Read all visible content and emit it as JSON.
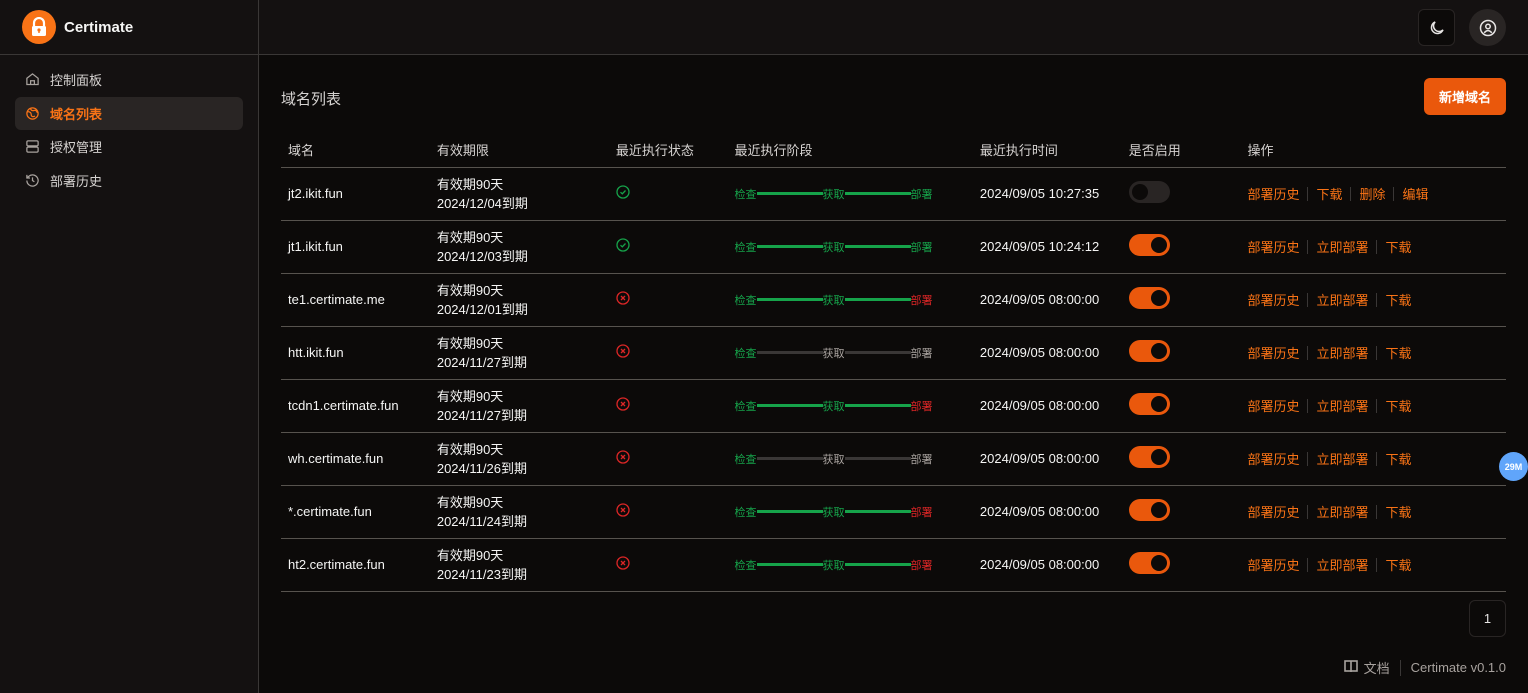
{
  "app": {
    "title": "Certimate",
    "accent": "#f97316"
  },
  "sidebar": {
    "items": [
      {
        "label": "控制面板",
        "icon": "home-icon"
      },
      {
        "label": "域名列表",
        "icon": "globe-icon",
        "active": true
      },
      {
        "label": "授权管理",
        "icon": "server-icon"
      },
      {
        "label": "部署历史",
        "icon": "history-icon"
      }
    ]
  },
  "header": {
    "theme_icon": "moon-icon",
    "user_icon": "user-circle-icon"
  },
  "main": {
    "title": "域名列表",
    "add_label": "新增域名",
    "columns": [
      "域名",
      "有效期限",
      "最近执行状态",
      "最近执行阶段",
      "最近执行时间",
      "是否启用",
      "操作"
    ],
    "stage_labels": [
      "检查",
      "获取",
      "部署"
    ],
    "colors": {
      "success": "#16a34a",
      "failed": "#dc2626",
      "pending": "#a8a29e"
    },
    "rows": [
      {
        "domain": "jt2.ikit.fun",
        "validity": "有效期90天",
        "expiry": "2024/12/04到期",
        "status": "success",
        "stages": [
          "success",
          "success",
          "success"
        ],
        "time": "2024/09/05 10:27:35",
        "enabled": false,
        "actions": [
          "部署历史",
          "下载",
          "删除",
          "编辑"
        ]
      },
      {
        "domain": "jt1.ikit.fun",
        "validity": "有效期90天",
        "expiry": "2024/12/03到期",
        "status": "success",
        "stages": [
          "success",
          "success",
          "success"
        ],
        "time": "2024/09/05 10:24:12",
        "enabled": true,
        "actions": [
          "部署历史",
          "立即部署",
          "下载"
        ]
      },
      {
        "domain": "te1.certimate.me",
        "validity": "有效期90天",
        "expiry": "2024/12/01到期",
        "status": "failed",
        "stages": [
          "success",
          "success",
          "failed"
        ],
        "time": "2024/09/05 08:00:00",
        "enabled": true,
        "actions": [
          "部署历史",
          "立即部署",
          "下载"
        ]
      },
      {
        "domain": "htt.ikit.fun",
        "validity": "有效期90天",
        "expiry": "2024/11/27到期",
        "status": "failed",
        "stages": [
          "success",
          "pending",
          "pending"
        ],
        "time": "2024/09/05 08:00:00",
        "enabled": true,
        "actions": [
          "部署历史",
          "立即部署",
          "下载"
        ]
      },
      {
        "domain": "tcdn1.certimate.fun",
        "validity": "有效期90天",
        "expiry": "2024/11/27到期",
        "status": "failed",
        "stages": [
          "success",
          "success",
          "failed"
        ],
        "time": "2024/09/05 08:00:00",
        "enabled": true,
        "actions": [
          "部署历史",
          "立即部署",
          "下载"
        ]
      },
      {
        "domain": "wh.certimate.fun",
        "validity": "有效期90天",
        "expiry": "2024/11/26到期",
        "status": "failed",
        "stages": [
          "success",
          "pending",
          "pending"
        ],
        "time": "2024/09/05 08:00:00",
        "enabled": true,
        "actions": [
          "部署历史",
          "立即部署",
          "下载"
        ]
      },
      {
        "domain": "*.certimate.fun",
        "validity": "有效期90天",
        "expiry": "2024/11/24到期",
        "status": "failed",
        "stages": [
          "success",
          "success",
          "failed"
        ],
        "time": "2024/09/05 08:00:00",
        "enabled": true,
        "actions": [
          "部署历史",
          "立即部署",
          "下载"
        ]
      },
      {
        "domain": "ht2.certimate.fun",
        "validity": "有效期90天",
        "expiry": "2024/11/23到期",
        "status": "failed",
        "stages": [
          "success",
          "success",
          "failed"
        ],
        "time": "2024/09/05 08:00:00",
        "enabled": true,
        "actions": [
          "部署历史",
          "立即部署",
          "下载"
        ]
      }
    ],
    "page": "1"
  },
  "footer": {
    "docs_label": "文档",
    "version": "Certimate v0.1.0"
  },
  "bubble": {
    "label": "29M"
  }
}
